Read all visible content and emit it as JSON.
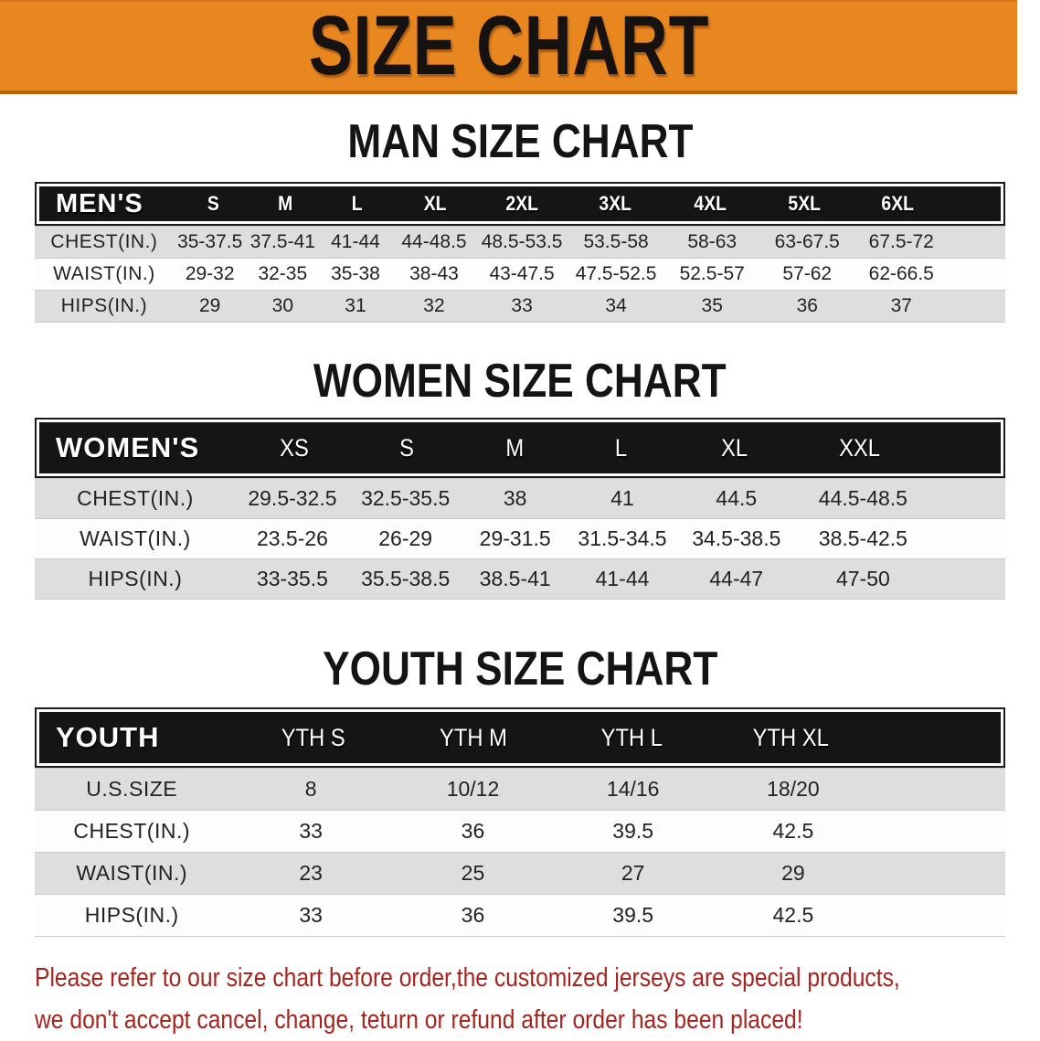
{
  "banner": {
    "title": "SIZE CHART"
  },
  "colors": {
    "banner_bg": "#E8861F",
    "banner_edge": "#BB6414",
    "header_bar_bg": "#151515",
    "alt_row_bg": "#DEDEDE",
    "footer_text": "#A6241E"
  },
  "sections": {
    "men": {
      "heading": "MAN SIZE CHART",
      "label": "MEN'S",
      "sizes": [
        "S",
        "M",
        "L",
        "XL",
        "2XL",
        "3XL",
        "4XL",
        "5XL",
        "6XL"
      ],
      "rows": [
        {
          "label": "CHEST(IN.)",
          "values": [
            "35-37.5",
            "37.5-41",
            "41-44",
            "44-48.5",
            "48.5-53.5",
            "53.5-58",
            "58-63",
            "63-67.5",
            "67.5-72"
          ]
        },
        {
          "label": "WAIST(IN.)",
          "values": [
            "29-32",
            "32-35",
            "35-38",
            "38-43",
            "43-47.5",
            "47.5-52.5",
            "52.5-57",
            "57-62",
            "62-66.5"
          ]
        },
        {
          "label": "HIPS(IN.)",
          "values": [
            "29",
            "30",
            "31",
            "32",
            "33",
            "34",
            "35",
            "36",
            "37"
          ]
        }
      ]
    },
    "women": {
      "heading": "WOMEN SIZE CHART",
      "label": "WOMEN'S",
      "sizes": [
        "XS",
        "S",
        "M",
        "L",
        "XL",
        "XXL"
      ],
      "rows": [
        {
          "label": "CHEST(IN.)",
          "values": [
            "29.5-32.5",
            "32.5-35.5",
            "38",
            "41",
            "44.5",
            "44.5-48.5"
          ]
        },
        {
          "label": "WAIST(IN.)",
          "values": [
            "23.5-26",
            "26-29",
            "29-31.5",
            "31.5-34.5",
            "34.5-38.5",
            "38.5-42.5"
          ]
        },
        {
          "label": "HIPS(IN.)",
          "values": [
            "33-35.5",
            "35.5-38.5",
            "38.5-41",
            "41-44",
            "44-47",
            "47-50"
          ]
        }
      ]
    },
    "youth": {
      "heading": "YOUTH SIZE CHART",
      "label": "YOUTH",
      "sizes": [
        "YTH S",
        "YTH M",
        "YTH L",
        "YTH XL"
      ],
      "rows": [
        {
          "label": "U.S.SIZE",
          "values": [
            "8",
            "10/12",
            "14/16",
            "18/20"
          ]
        },
        {
          "label": "CHEST(IN.)",
          "values": [
            "33",
            "36",
            "39.5",
            "42.5"
          ]
        },
        {
          "label": "WAIST(IN.)",
          "values": [
            "23",
            "25",
            "27",
            "29"
          ]
        },
        {
          "label": "HIPS(IN.)",
          "values": [
            "33",
            "36",
            "39.5",
            "42.5"
          ]
        }
      ]
    }
  },
  "footer": {
    "line1": "Please refer to our size chart before order,the customized jerseys are special products,",
    "line2": "we don't accept cancel, change, teturn or refund after order has been placed!"
  }
}
